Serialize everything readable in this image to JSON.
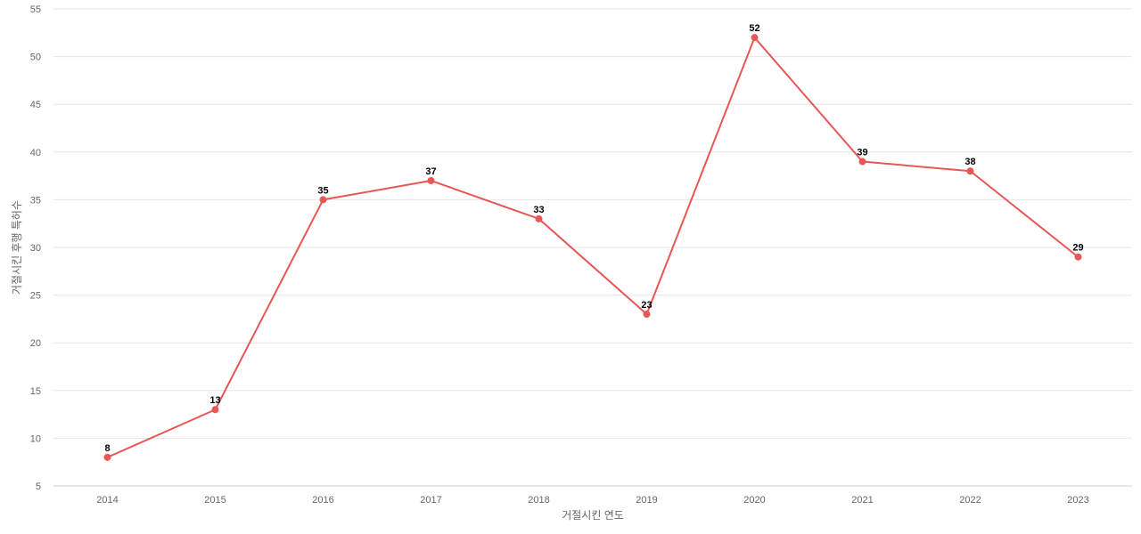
{
  "chart_data": {
    "type": "line",
    "title": "",
    "xlabel": "거절시킨 연도",
    "ylabel": "거절시킨 후행 특허수",
    "categories": [
      "2014",
      "2015",
      "2016",
      "2017",
      "2018",
      "2019",
      "2020",
      "2021",
      "2022",
      "2023"
    ],
    "series": [
      {
        "values": [
          8,
          13,
          35,
          37,
          33,
          23,
          52,
          39,
          38,
          29
        ]
      }
    ],
    "ylim": [
      5,
      55
    ],
    "yticks": [
      "5",
      "10",
      "15",
      "20",
      "25",
      "30",
      "35",
      "40",
      "45",
      "50",
      "55"
    ],
    "grid": true,
    "legend": "none",
    "colors": {
      "line": "#e85656",
      "grid": "#e6e6e6",
      "text": "#666666"
    }
  }
}
